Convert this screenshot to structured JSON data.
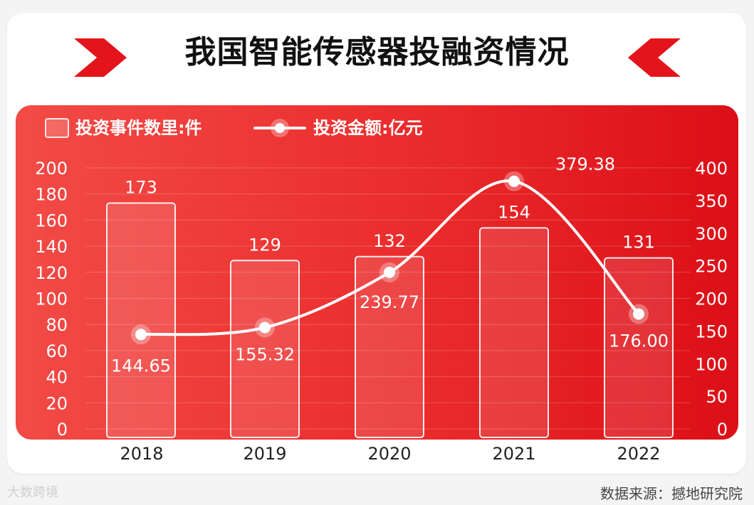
{
  "title": "我国智能传感器投融资情况",
  "source": "数据来源：撼地研究院",
  "watermark": "大数跨境",
  "colors": {
    "panel_start": "#f24b46",
    "panel_end": "#dc0f17",
    "chevron": "#e4141c",
    "line": "#ffffff",
    "bar_fill": "rgba(255,255,255,0.12)"
  },
  "chart_data": {
    "type": "bar+line",
    "categories": [
      "2018",
      "2019",
      "2020",
      "2021",
      "2022"
    ],
    "series": [
      {
        "name": "投资事件数里:件",
        "kind": "bar",
        "axis": "left",
        "values": [
          173,
          129,
          132,
          154,
          131
        ],
        "labels": [
          "173",
          "129",
          "132",
          "154",
          "131"
        ]
      },
      {
        "name": "投资金额:亿元",
        "kind": "line",
        "axis": "right",
        "values": [
          144.65,
          155.32,
          239.77,
          379.38,
          176.0
        ],
        "labels": [
          "144.65",
          "155.32",
          "239.77",
          "379.38",
          "176.00"
        ]
      }
    ],
    "y_left": {
      "min": 0,
      "max": 200,
      "ticks": [
        "0",
        "20",
        "40",
        "60",
        "80",
        "100",
        "120",
        "140",
        "160",
        "180",
        "200"
      ]
    },
    "y_right": {
      "min": 0,
      "max": 400,
      "ticks": [
        "0",
        "50",
        "100",
        "150",
        "200",
        "250",
        "300",
        "350",
        "400"
      ]
    },
    "grid": true,
    "legend_position": "top-left"
  }
}
